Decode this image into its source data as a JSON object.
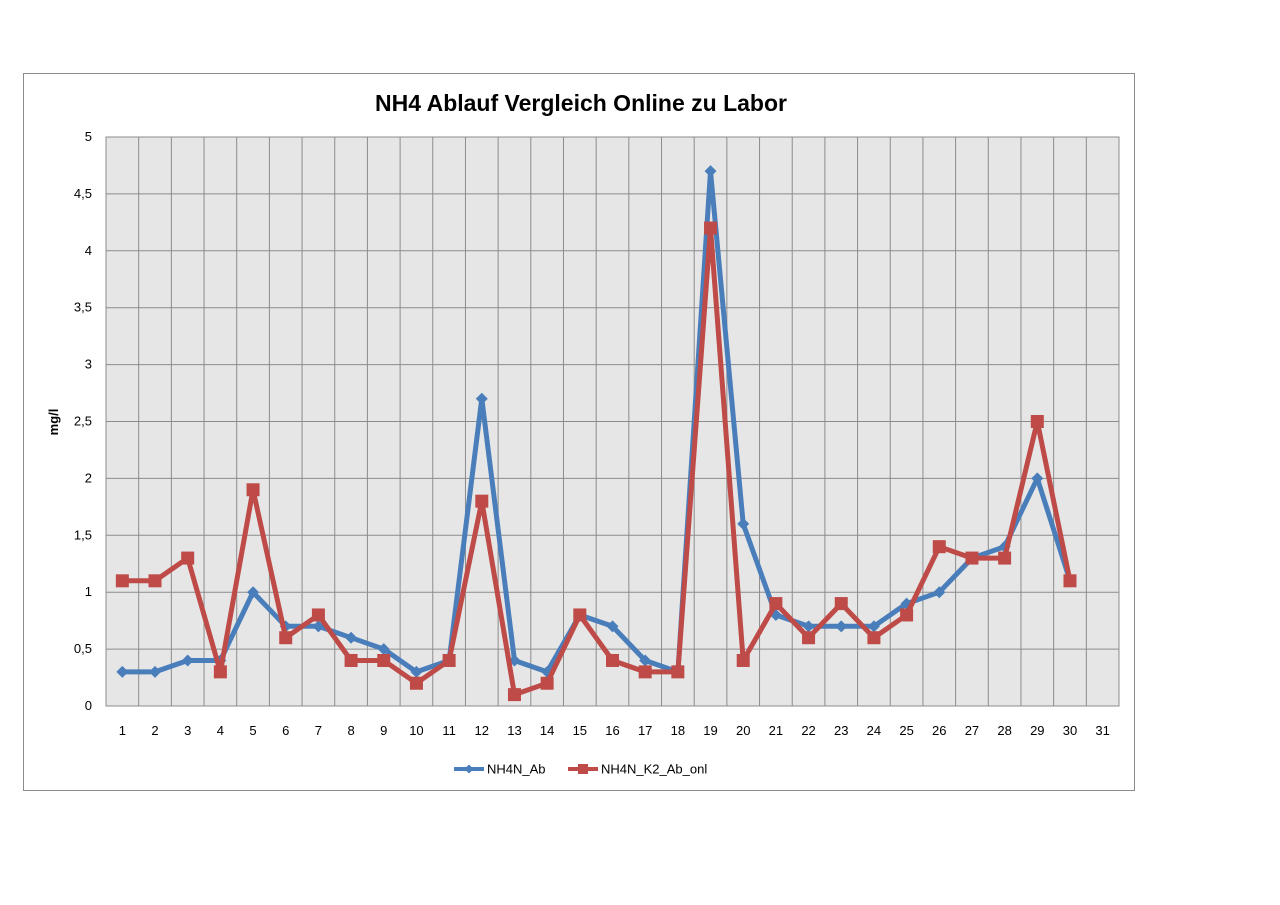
{
  "chart_data": {
    "type": "line",
    "title": "NH4 Ablauf Vergleich Online zu Labor",
    "xlabel": "",
    "ylabel": "mg/l",
    "categories": [
      "1",
      "2",
      "3",
      "4",
      "5",
      "6",
      "7",
      "8",
      "9",
      "10",
      "11",
      "12",
      "13",
      "14",
      "15",
      "16",
      "17",
      "18",
      "19",
      "20",
      "21",
      "22",
      "23",
      "24",
      "25",
      "26",
      "27",
      "28",
      "29",
      "30",
      "31"
    ],
    "ylim": [
      0,
      5
    ],
    "yticks": [
      "0",
      "0,5",
      "1",
      "1,5",
      "2",
      "2,5",
      "3",
      "3,5",
      "4",
      "4,5",
      "5"
    ],
    "grid": true,
    "legend_position": "bottom",
    "series": [
      {
        "name": "NH4N_Ab",
        "color": "#4a7ebb",
        "marker": "diamond",
        "values": [
          0.3,
          0.3,
          0.4,
          0.4,
          1.0,
          0.7,
          0.7,
          0.6,
          0.5,
          0.3,
          0.4,
          2.7,
          0.4,
          0.3,
          0.8,
          0.7,
          0.4,
          0.3,
          4.7,
          1.6,
          0.8,
          0.7,
          0.7,
          0.7,
          0.9,
          1.0,
          1.3,
          1.4,
          2.0,
          1.1,
          null
        ]
      },
      {
        "name": "NH4N_K2_Ab_onl",
        "color": "#be4b48",
        "marker": "square",
        "values": [
          1.1,
          1.1,
          1.3,
          0.3,
          1.9,
          0.6,
          0.8,
          0.4,
          0.4,
          0.2,
          0.4,
          1.8,
          0.1,
          0.2,
          0.8,
          0.4,
          0.3,
          0.3,
          4.2,
          0.4,
          0.9,
          0.6,
          0.9,
          0.6,
          0.8,
          1.4,
          1.3,
          1.3,
          2.5,
          1.1,
          null
        ]
      }
    ]
  }
}
